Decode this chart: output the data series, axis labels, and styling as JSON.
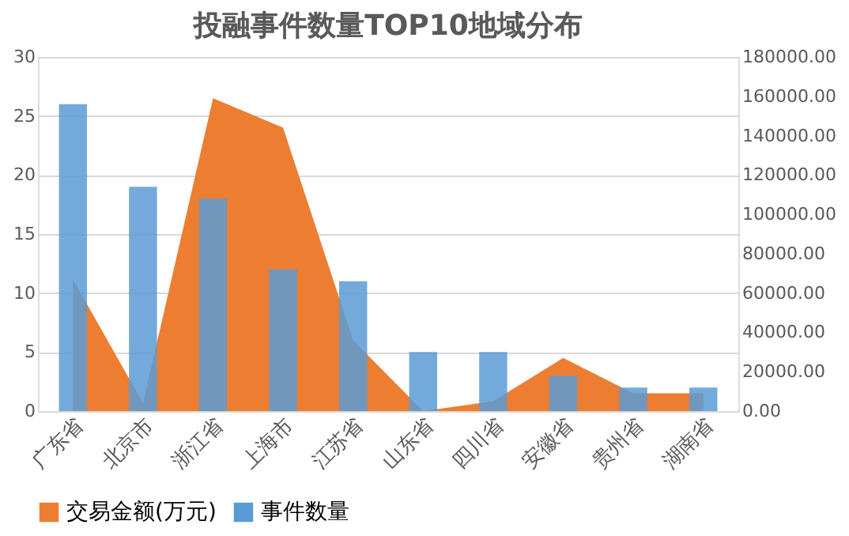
{
  "chart_data": {
    "type": "bar",
    "title": "投融事件数量TOP10地域分布",
    "categories": [
      "广东省",
      "北京市",
      "浙江省",
      "上海市",
      "江苏省",
      "山东省",
      "四川省",
      "安徽省",
      "贵州省",
      "湖南省"
    ],
    "series": [
      {
        "name": "交易金额(万元)",
        "type": "area",
        "axis": "y2",
        "color": "#ed7d31",
        "values": [
          67000,
          4000,
          159000,
          144000,
          36000,
          0,
          5000,
          27000,
          9000,
          9000
        ]
      },
      {
        "name": "事件数量",
        "color": "#5b9bd5",
        "values": [
          26,
          19,
          18,
          12,
          11,
          5,
          5,
          3,
          2,
          2
        ]
      }
    ],
    "ylim": [
      0,
      30
    ],
    "yticks": [
      0,
      5,
      10,
      15,
      20,
      25,
      30
    ],
    "y2lim": [
      0,
      180000
    ],
    "y2ticks": [
      {
        "value": 0,
        "label": "0.00"
      },
      {
        "value": 20000,
        "label": "20000.00"
      },
      {
        "value": 40000,
        "label": "40000.00"
      },
      {
        "value": 60000,
        "label": "60000.00"
      },
      {
        "value": 80000,
        "label": "80000.00"
      },
      {
        "value": 100000,
        "label": "100000.00"
      },
      {
        "value": 120000,
        "label": "120000.00"
      },
      {
        "value": 140000,
        "label": "140000.00"
      },
      {
        "value": 160000,
        "label": "160000.00"
      },
      {
        "value": 180000,
        "label": "180000.00"
      }
    ],
    "grid": "y",
    "legend": "bottom"
  }
}
